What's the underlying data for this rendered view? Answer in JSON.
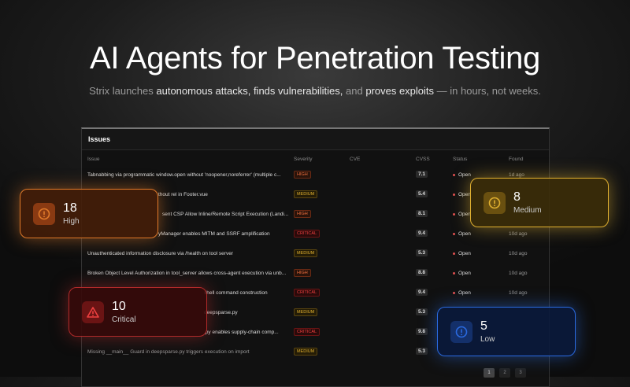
{
  "hero": {
    "title": "AI Agents for Penetration Testing",
    "subtitle": [
      "Strix launches ",
      "autonomous attacks, finds vulnerabilities,",
      " and ",
      "proves exploits",
      " — in hours, not weeks."
    ]
  },
  "table": {
    "title": "Issues",
    "columns": [
      "Issue",
      "Severity",
      "CVE",
      "CVSS",
      "Status",
      "Found"
    ],
    "rows": [
      {
        "issue": "Tabnabbing via programmatic window.open without 'noopener,noreferrer' (multiple c...",
        "severity": "HIGH",
        "cvss": "7.1",
        "status": "Open",
        "found": "1d ago"
      },
      {
        "issue": "thout rel in Footer.vue",
        "severity": "MEDIUM",
        "cvss": "5.4",
        "status": "Open"
      },
      {
        "issue": "sent CSP Allow Inline/Remote Script Execution (Landi...",
        "severity": "HIGH",
        "cvss": "8.1",
        "status": "Open"
      },
      {
        "issue": "yManager enables MITM and SSRF amplification",
        "severity": "CRITICAL",
        "cvss": "9.4",
        "status": "Open",
        "found": "10d ago"
      },
      {
        "issue": "Unauthenticated information disclosure via /health on tool server",
        "severity": "MEDIUM",
        "cvss": "5.3",
        "status": "Open",
        "found": "10d ago"
      },
      {
        "issue": "Broken Object Level Authorization in tool_server allows cross-agent execution via unb...",
        "severity": "HIGH",
        "cvss": "8.8",
        "status": "Open",
        "found": "10d ago"
      },
      {
        "issue": "shell command construction",
        "severity": "CRITICAL",
        "cvss": "9.4",
        "status": "Open",
        "found": "10d ago"
      },
      {
        "issue": "deepsparse.py",
        "severity": "MEDIUM",
        "cvss": "5.3"
      },
      {
        "issue": ".py enables supply-chain comp...",
        "severity": "CRITICAL",
        "cvss": "9.8"
      },
      {
        "issue": "Missing __main__ Guard in deepsparse.py triggers execution on import",
        "severity": "MEDIUM",
        "cvss": "5.3"
      }
    ],
    "pages": [
      "1",
      "2",
      "3"
    ]
  },
  "cards": [
    {
      "count": "18",
      "label": "High"
    },
    {
      "count": "8",
      "label": "Medium"
    },
    {
      "count": "10",
      "label": "Critical"
    },
    {
      "count": "5",
      "label": "Low"
    }
  ]
}
